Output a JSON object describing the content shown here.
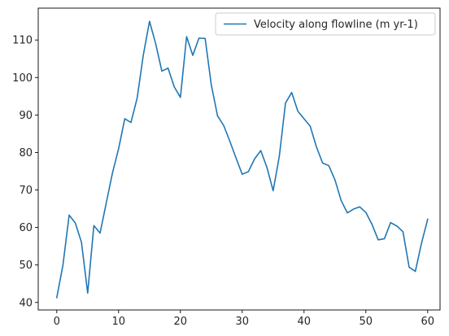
{
  "chart_data": {
    "type": "line",
    "title": "",
    "xlabel": "",
    "ylabel": "",
    "xlim": [
      -3,
      62
    ],
    "ylim": [
      38,
      118.5
    ],
    "xticks": [
      0,
      10,
      20,
      30,
      40,
      50,
      60
    ],
    "yticks": [
      40,
      50,
      60,
      70,
      80,
      90,
      100,
      110
    ],
    "grid": false,
    "legend": {
      "placement": "top-right"
    },
    "series": [
      {
        "name": "Velocity along flowline (m yr-1)",
        "color": "#1f77b4",
        "x": [
          0,
          1,
          2,
          3,
          4,
          5,
          6,
          7,
          8,
          9,
          10,
          11,
          12,
          13,
          14,
          15,
          16,
          17,
          18,
          19,
          20,
          21,
          22,
          23,
          24,
          25,
          26,
          27,
          28,
          29,
          30,
          31,
          32,
          33,
          34,
          35,
          36,
          37,
          38,
          39,
          40,
          41,
          42,
          43,
          44,
          45,
          46,
          47,
          48,
          49,
          50,
          51,
          52,
          53,
          54,
          55,
          56,
          57,
          58,
          59,
          60
        ],
        "y": [
          41.3,
          50.0,
          63.3,
          61.2,
          56.0,
          42.5,
          60.5,
          58.5,
          66.5,
          74.5,
          81.0,
          89.0,
          88.0,
          94.5,
          106.0,
          115.0,
          109.0,
          101.7,
          102.5,
          97.5,
          94.7,
          110.9,
          105.9,
          110.5,
          110.4,
          98.0,
          89.8,
          87.2,
          83.0,
          78.5,
          74.2,
          74.9,
          78.3,
          80.5,
          76.0,
          69.8,
          79.0,
          93.2,
          96.0,
          91.0,
          89.0,
          87.0,
          81.5,
          77.2,
          76.5,
          72.7,
          67.2,
          63.9,
          64.9,
          65.5,
          64.0,
          60.8,
          56.7,
          57.0,
          61.3,
          60.4,
          58.9,
          49.4,
          48.3,
          55.8,
          62.2
        ]
      }
    ]
  }
}
